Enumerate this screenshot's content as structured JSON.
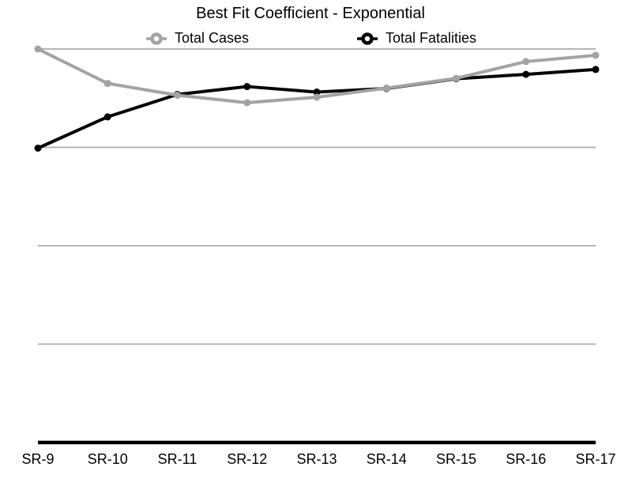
{
  "chart_data": {
    "type": "line",
    "title": "Best Fit Coefficient - Exponential",
    "categories": [
      "SR-9",
      "SR-10",
      "SR-11",
      "SR-12",
      "SR-13",
      "SR-14",
      "SR-15",
      "SR-16",
      "SR-17"
    ],
    "series": [
      {
        "name": "Total Cases",
        "color": "#a3a3a3",
        "marker": "circle",
        "values": [
          2.0,
          1.825,
          1.765,
          1.727,
          1.755,
          1.801,
          1.851,
          1.936,
          1.968
        ]
      },
      {
        "name": "Total Fatalities",
        "color": "#000000",
        "marker": "circle",
        "values": [
          1.496,
          1.655,
          1.769,
          1.809,
          1.781,
          1.799,
          1.849,
          1.871,
          1.896
        ]
      }
    ],
    "xlabel": "",
    "ylabel": "",
    "ylim": [
      0,
      2.25
    ],
    "gridline_values": [
      0.5,
      1.0,
      1.5,
      2.0
    ],
    "gridline_color": "#b5b5b5",
    "axis_color": "#000000",
    "background": "#ffffff",
    "legend_position": "top",
    "y_axis_labels_visible": false,
    "grid": "horizontal-only"
  }
}
